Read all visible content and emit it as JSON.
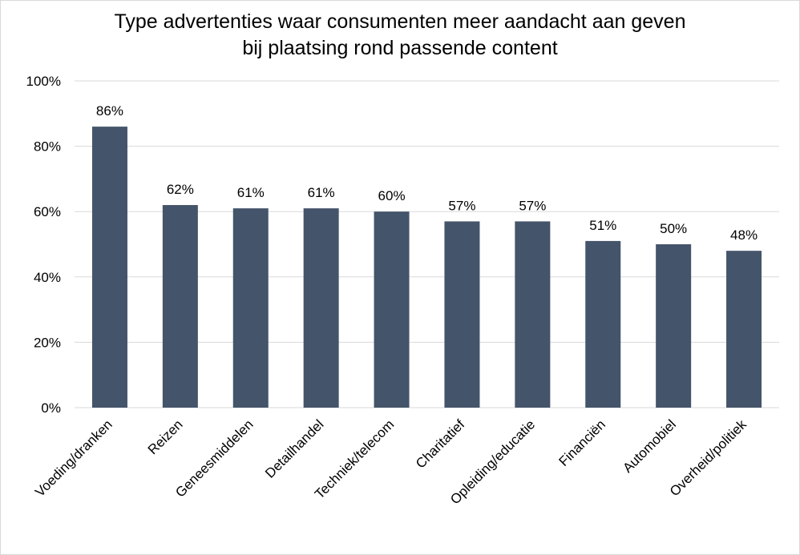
{
  "chart_data": {
    "type": "bar",
    "title_lines": [
      "Type advertenties waar consumenten meer aandacht aan geven",
      "bij plaatsing rond passende content"
    ],
    "categories": [
      "Voeding/dranken",
      "Reizen",
      "Geneesmiddelen",
      "Detailhandel",
      "Techniek/telecom",
      "Charitatief",
      "Opleiding/educatie",
      "Financiën",
      "Automobiel",
      "Overheid/politiek"
    ],
    "values": [
      86,
      62,
      61,
      61,
      60,
      57,
      57,
      51,
      50,
      48
    ],
    "data_labels": [
      "86%",
      "62%",
      "61%",
      "61%",
      "60%",
      "57%",
      "57%",
      "51%",
      "50%",
      "48%"
    ],
    "y_ticks": [
      "0%",
      "20%",
      "40%",
      "60%",
      "80%",
      "100%"
    ],
    "ylim": [
      0,
      100
    ],
    "xlabel": "",
    "ylabel": "",
    "grid": true,
    "legend": false,
    "colors": {
      "bar": "#44546a",
      "grid": "#d9d9d9",
      "text": "#000000"
    }
  }
}
